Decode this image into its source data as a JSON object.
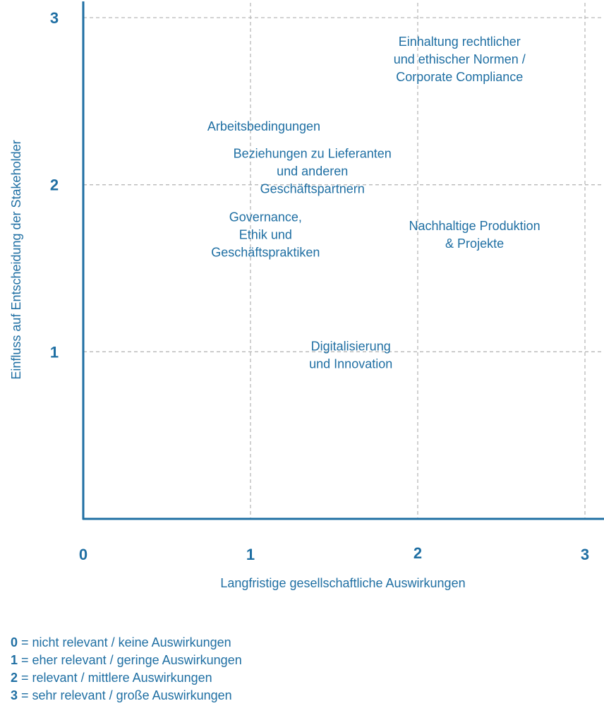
{
  "chart_data": {
    "type": "scatter",
    "xlabel": "Langfristige gesellschaftliche Auswirkungen",
    "ylabel": "Einfluss auf Entscheidung der Stakeholder",
    "xlim": [
      0,
      3
    ],
    "ylim": [
      0,
      3
    ],
    "x_ticks": [
      "0",
      "1",
      "2",
      "3"
    ],
    "y_ticks": [
      "1",
      "2",
      "3"
    ],
    "grid": true,
    "points": [
      {
        "label": [
          "Einhaltung rechtlicher",
          "und ethischer Normen /",
          "Corporate Compliance"
        ],
        "x": 2.25,
        "y": 2.75
      },
      {
        "label": [
          "Arbeitsbedingungen"
        ],
        "x": 1.08,
        "y": 2.35
      },
      {
        "label": [
          "Beziehungen zu Lieferanten",
          "und anderen",
          "Geschäftspartnern"
        ],
        "x": 1.37,
        "y": 2.08
      },
      {
        "label": [
          "Governance,",
          "Ethik und",
          "Geschäftspraktiken"
        ],
        "x": 1.09,
        "y": 1.7
      },
      {
        "label": [
          "Nachhaltige Produktion",
          "& Projekte"
        ],
        "x": 2.34,
        "y": 1.7
      },
      {
        "label": [
          "Digitalisierung",
          "und Innovation"
        ],
        "x": 1.6,
        "y": 0.98
      }
    ]
  },
  "legend": [
    {
      "key": "0",
      "text": "= nicht relevant / keine Auswirkungen"
    },
    {
      "key": "1",
      "text": "= eher relevant / geringe Auswirkungen"
    },
    {
      "key": "2",
      "text": "= relevant / mittlere Auswirkungen"
    },
    {
      "key": "3",
      "text": "= sehr relevant / große Auswirkungen"
    }
  ]
}
